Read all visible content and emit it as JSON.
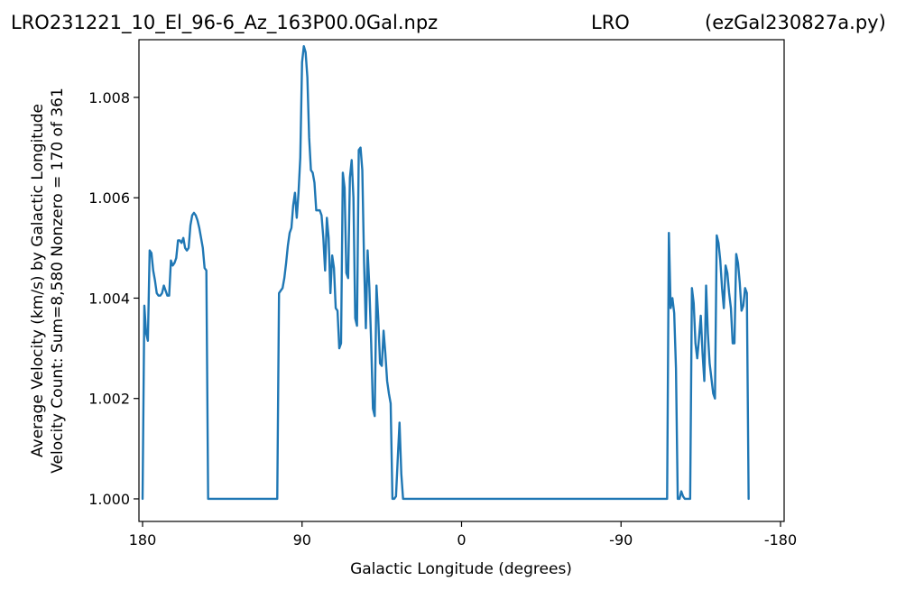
{
  "header": {
    "left": "LRO231221_10_El_96-6_Az_163P00.0Gal.npz",
    "center": "LRO",
    "right": "(ezGal230827a.py)"
  },
  "chart_data": {
    "type": "line",
    "xlabel": "Galactic Longitude (degrees)",
    "ylabel_line1": "Average Velocity (km/s) by Galactic Longitude",
    "ylabel_line2": "Velocity Count: Sum=8,580 Nonzero = 170 of 361",
    "xlim": [
      180,
      -180
    ],
    "ylim": [
      0.99955,
      1.00915
    ],
    "x_ticks": [
      180,
      90,
      0,
      -90,
      -180
    ],
    "x_tick_labels": [
      "180",
      "90",
      "0",
      "-90",
      "-180"
    ],
    "y_ticks": [
      1.0,
      1.002,
      1.004,
      1.006,
      1.008
    ],
    "y_tick_labels": [
      "1.000",
      "1.002",
      "1.004",
      "1.006",
      "1.008"
    ],
    "line_color": "#1f77b4",
    "grid": false,
    "series": [
      {
        "points": [
          [
            180,
            1.0
          ],
          [
            179,
            1.00385
          ],
          [
            178,
            1.0033
          ],
          [
            177,
            1.00315
          ],
          [
            176,
            1.00495
          ],
          [
            175,
            1.0049
          ],
          [
            174,
            1.00455
          ],
          [
            173,
            1.00435
          ],
          [
            172,
            1.0041
          ],
          [
            171,
            1.00405
          ],
          [
            170,
            1.00405
          ],
          [
            169,
            1.0041
          ],
          [
            168,
            1.00425
          ],
          [
            167,
            1.00415
          ],
          [
            166,
            1.00405
          ],
          [
            165,
            1.00405
          ],
          [
            164,
            1.00475
          ],
          [
            163,
            1.00465
          ],
          [
            162,
            1.0047
          ],
          [
            161,
            1.0048
          ],
          [
            160,
            1.00515
          ],
          [
            159,
            1.00515
          ],
          [
            158,
            1.0051
          ],
          [
            157,
            1.0052
          ],
          [
            156,
            1.005
          ],
          [
            155,
            1.00495
          ],
          [
            154,
            1.005
          ],
          [
            153,
            1.00545
          ],
          [
            152,
            1.00565
          ],
          [
            151,
            1.0057
          ],
          [
            150,
            1.00565
          ],
          [
            149,
            1.00555
          ],
          [
            148,
            1.0054
          ],
          [
            147,
            1.0052
          ],
          [
            146,
            1.005
          ],
          [
            145,
            1.0046
          ],
          [
            144,
            1.00455
          ],
          [
            143,
            1.0
          ],
          [
            135,
            1.0
          ],
          [
            125,
            1.0
          ],
          [
            115,
            1.0
          ],
          [
            105,
            1.0
          ],
          [
            104,
            1.0
          ],
          [
            103,
            1.0041
          ],
          [
            102,
            1.00415
          ],
          [
            101,
            1.0042
          ],
          [
            100,
            1.0044
          ],
          [
            99,
            1.0047
          ],
          [
            98,
            1.00505
          ],
          [
            97,
            1.0053
          ],
          [
            96,
            1.0054
          ],
          [
            95,
            1.00585
          ],
          [
            94,
            1.0061
          ],
          [
            93,
            1.0056
          ],
          [
            92,
            1.0061
          ],
          [
            91,
            1.0068
          ],
          [
            90,
            1.0087
          ],
          [
            89,
            1.00902
          ],
          [
            88,
            1.0089
          ],
          [
            87,
            1.0084
          ],
          [
            86,
            1.0072
          ],
          [
            85,
            1.00655
          ],
          [
            84,
            1.0065
          ],
          [
            83,
            1.0063
          ],
          [
            82,
            1.00575
          ],
          [
            81,
            1.00575
          ],
          [
            80,
            1.00575
          ],
          [
            79,
            1.00565
          ],
          [
            78,
            1.0052
          ],
          [
            77,
            1.00455
          ],
          [
            76,
            1.0056
          ],
          [
            75,
            1.0052
          ],
          [
            74,
            1.0041
          ],
          [
            73,
            1.00485
          ],
          [
            72,
            1.0046
          ],
          [
            71,
            1.0038
          ],
          [
            70,
            1.00375
          ],
          [
            69,
            1.003
          ],
          [
            68,
            1.0031
          ],
          [
            67,
            1.0065
          ],
          [
            66,
            1.0062
          ],
          [
            65,
            1.0045
          ],
          [
            64,
            1.0044
          ],
          [
            63,
            1.0064
          ],
          [
            62,
            1.00675
          ],
          [
            61,
            1.006
          ],
          [
            60,
            1.0036
          ],
          [
            59,
            1.00345
          ],
          [
            58,
            1.00695
          ],
          [
            57,
            1.007
          ],
          [
            56,
            1.00655
          ],
          [
            55,
            1.0047
          ],
          [
            54,
            1.0034
          ],
          [
            53,
            1.00495
          ],
          [
            52,
            1.0042
          ],
          [
            51,
            1.0031
          ],
          [
            50,
            1.0018
          ],
          [
            49,
            1.00165
          ],
          [
            48,
            1.00425
          ],
          [
            47,
            1.0036
          ],
          [
            46,
            1.0027
          ],
          [
            45,
            1.00265
          ],
          [
            44,
            1.00335
          ],
          [
            43,
            1.0029
          ],
          [
            42,
            1.00235
          ],
          [
            41,
            1.0021
          ],
          [
            40,
            1.0019
          ],
          [
            39,
            1.0
          ],
          [
            38,
            1.0
          ],
          [
            37,
            1.00005
          ],
          [
            36,
            1.0008
          ],
          [
            35,
            1.00152
          ],
          [
            34,
            1.0005
          ],
          [
            33,
            1.0
          ],
          [
            20,
            1.0
          ],
          [
            0,
            1.0
          ],
          [
            -20,
            1.0
          ],
          [
            -40,
            1.0
          ],
          [
            -60,
            1.0
          ],
          [
            -80,
            1.0
          ],
          [
            -100,
            1.0
          ],
          [
            -115,
            1.0
          ],
          [
            -116,
            1.0
          ],
          [
            -117,
            1.0053
          ],
          [
            -118,
            1.0038
          ],
          [
            -119,
            1.004
          ],
          [
            -120,
            1.0037
          ],
          [
            -121,
            1.0026
          ],
          [
            -122,
            1.0
          ],
          [
            -123,
            1.0
          ],
          [
            -124,
            1.00015
          ],
          [
            -125,
            1.00005
          ],
          [
            -126,
            1.0
          ],
          [
            -127,
            1.0
          ],
          [
            -128,
            1.0
          ],
          [
            -129,
            1.0
          ],
          [
            -130,
            1.0042
          ],
          [
            -131,
            1.0039
          ],
          [
            -132,
            1.0031
          ],
          [
            -133,
            1.0028
          ],
          [
            -134,
            1.0032
          ],
          [
            -135,
            1.00365
          ],
          [
            -136,
            1.0029
          ],
          [
            -137,
            1.00235
          ],
          [
            -138,
            1.00425
          ],
          [
            -139,
            1.0033
          ],
          [
            -140,
            1.0027
          ],
          [
            -141,
            1.0024
          ],
          [
            -142,
            1.0021
          ],
          [
            -143,
            1.002
          ],
          [
            -144,
            1.00525
          ],
          [
            -145,
            1.0051
          ],
          [
            -146,
            1.00475
          ],
          [
            -147,
            1.0042
          ],
          [
            -148,
            1.0038
          ],
          [
            -149,
            1.00465
          ],
          [
            -150,
            1.0045
          ],
          [
            -151,
            1.0041
          ],
          [
            -152,
            1.0038
          ],
          [
            -153,
            1.0031
          ],
          [
            -154,
            1.0031
          ],
          [
            -155,
            1.00488
          ],
          [
            -156,
            1.0047
          ],
          [
            -157,
            1.0043
          ],
          [
            -158,
            1.00375
          ],
          [
            -159,
            1.00385
          ],
          [
            -160,
            1.0042
          ],
          [
            -161,
            1.0041
          ],
          [
            -162,
            1.0
          ]
        ]
      }
    ]
  }
}
